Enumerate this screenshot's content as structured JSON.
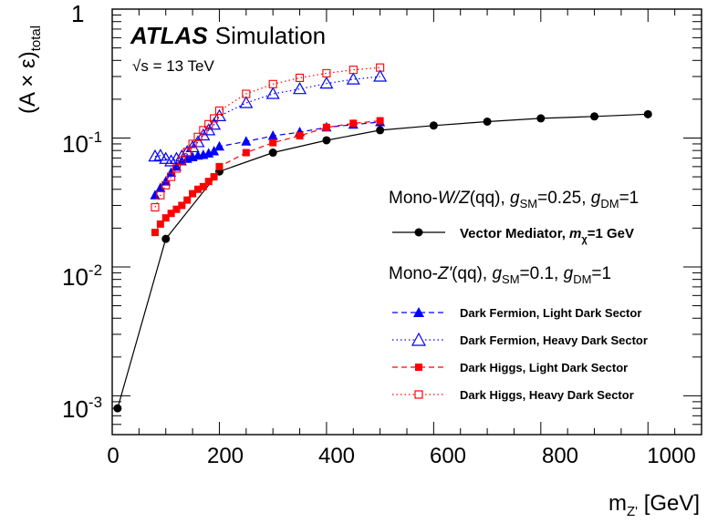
{
  "chart_data": {
    "type": "scatter",
    "yscale": "log",
    "xlim": [
      0,
      1100
    ],
    "ylim": [
      0.0005,
      1
    ],
    "x_ticks": [
      "0",
      "200",
      "400",
      "600",
      "800",
      "1000"
    ],
    "y_ticks": [
      {
        "base": "1",
        "exp": ""
      },
      {
        "base": "10",
        "exp": "-1"
      },
      {
        "base": "10",
        "exp": "-2"
      },
      {
        "base": "10",
        "exp": "-3"
      }
    ],
    "ylabel": {
      "pre": "(A × ε)",
      "sub": "total"
    },
    "xlabel": {
      "pre": "m",
      "sub": "Z'",
      "post": " [GeV]"
    },
    "atlas_label": "ATLAS",
    "atlas_suffix": "Simulation",
    "energy_label": {
      "root": "√s",
      "rest": " = 13 TeV"
    },
    "legend_header_1": {
      "a": "Mono-",
      "b": "W/Z",
      "c": "(qq), ",
      "d": "g",
      "e": "SM",
      "f": "=0.25, ",
      "g": "g",
      "h": "DM",
      "i": "=1"
    },
    "legend_header_2": {
      "a": "Mono-",
      "b": "Z'",
      "c": "(qq), ",
      "d": "g",
      "e": "SM",
      "f": "=0.1, ",
      "g": "g",
      "h": "DM",
      "i": "=1"
    },
    "legend_vector": {
      "a": "Vector Mediator, ",
      "b": "m",
      "c": "χ",
      "d": "=1 GeV"
    },
    "series": [
      {
        "name": "Vector Mediator",
        "color": "#000000",
        "marker": "circle",
        "line": "solid",
        "x": [
          10,
          100,
          200,
          300,
          400,
          500,
          600,
          700,
          800,
          900,
          1000
        ],
        "y": [
          0.0008,
          0.0165,
          0.055,
          0.077,
          0.096,
          0.115,
          0.125,
          0.134,
          0.142,
          0.147,
          0.153
        ]
      },
      {
        "name": "Dark Fermion, Light Dark Sector",
        "color": "#0000ff",
        "marker": "triangle-filled",
        "line": "dashed",
        "x": [
          80,
          90,
          100,
          110,
          120,
          130,
          140,
          150,
          160,
          170,
          180,
          190,
          200,
          250,
          300,
          350,
          400,
          450,
          500
        ],
        "y": [
          0.036,
          0.041,
          0.046,
          0.054,
          0.06,
          0.066,
          0.069,
          0.071,
          0.073,
          0.074,
          0.076,
          0.079,
          0.086,
          0.094,
          0.104,
          0.111,
          0.121,
          0.127,
          0.133
        ]
      },
      {
        "name": "Dark Fermion, Heavy Dark Sector",
        "color": "#0000ff",
        "marker": "triangle-open",
        "line": "dotted",
        "x": [
          80,
          90,
          100,
          110,
          120,
          130,
          140,
          150,
          160,
          170,
          180,
          190,
          200,
          250,
          300,
          350,
          400,
          450,
          500
        ],
        "y": [
          0.072,
          0.073,
          0.069,
          0.066,
          0.069,
          0.072,
          0.078,
          0.085,
          0.093,
          0.105,
          0.115,
          0.127,
          0.148,
          0.187,
          0.22,
          0.24,
          0.265,
          0.285,
          0.3
        ]
      },
      {
        "name": "Dark Higgs, Light Dark Sector",
        "color": "#ff0000",
        "marker": "square-filled",
        "line": "dashed",
        "x": [
          80,
          90,
          100,
          110,
          120,
          130,
          140,
          150,
          160,
          170,
          180,
          190,
          200,
          250,
          300,
          350,
          400,
          450,
          500
        ],
        "y": [
          0.0185,
          0.0215,
          0.024,
          0.026,
          0.028,
          0.03,
          0.033,
          0.037,
          0.04,
          0.042,
          0.046,
          0.05,
          0.06,
          0.077,
          0.092,
          0.104,
          0.121,
          0.13,
          0.136
        ]
      },
      {
        "name": "Dark Higgs, Heavy Dark Sector",
        "color": "#ff0000",
        "marker": "square-open",
        "line": "dotted",
        "x": [
          80,
          90,
          100,
          110,
          120,
          130,
          140,
          150,
          160,
          170,
          180,
          190,
          200,
          250,
          300,
          350,
          400,
          450,
          500
        ],
        "y": [
          0.029,
          0.036,
          0.043,
          0.05,
          0.058,
          0.067,
          0.078,
          0.09,
          0.102,
          0.115,
          0.128,
          0.142,
          0.163,
          0.22,
          0.262,
          0.293,
          0.318,
          0.338,
          0.352
        ]
      }
    ]
  }
}
